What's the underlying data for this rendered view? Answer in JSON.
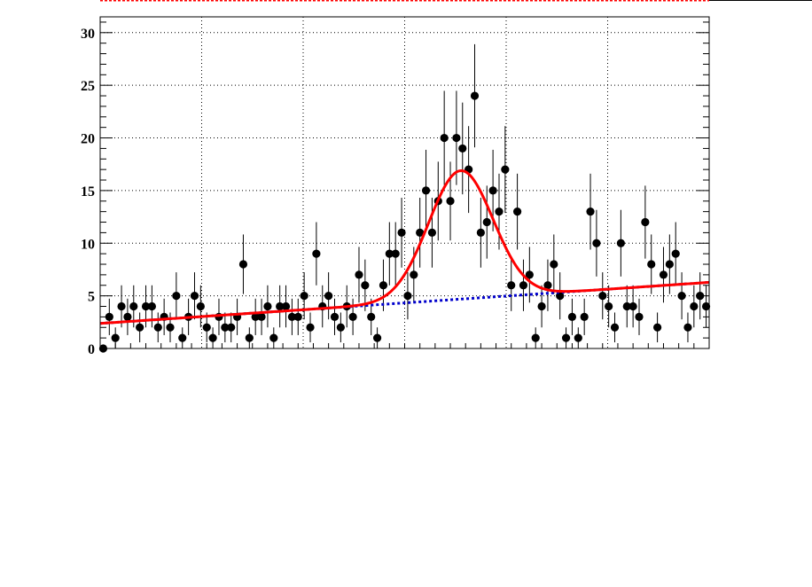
{
  "chart_data": {
    "type": "scatter",
    "title": "",
    "xlabel": "",
    "ylabel": "",
    "xlim": [
      0,
      100
    ],
    "ylim": [
      0,
      31.5
    ],
    "grid": true,
    "y_ticks": [
      0,
      5,
      10,
      15,
      20,
      25,
      30
    ],
    "colors": {
      "points": "#000000",
      "fit_total": "#ff0000",
      "fit_background": "#0000cc",
      "top_marker": "#ff0000"
    },
    "points": {
      "x": [
        0.5,
        1.5,
        2.5,
        3.5,
        4.5,
        5.5,
        6.5,
        7.5,
        8.5,
        9.5,
        10.5,
        11.5,
        12.5,
        13.5,
        14.5,
        15.5,
        16.5,
        17.5,
        18.5,
        19.5,
        20.5,
        21.5,
        22.5,
        23.5,
        24.5,
        25.5,
        26.5,
        27.5,
        28.5,
        29.5,
        30.5,
        31.5,
        32.5,
        33.5,
        34.5,
        35.5,
        36.5,
        37.5,
        38.5,
        39.5,
        40.5,
        41.5,
        42.5,
        43.5,
        44.5,
        45.5,
        46.5,
        47.5,
        48.5,
        49.5,
        50.5,
        51.5,
        52.5,
        53.5,
        54.5,
        55.5,
        56.5,
        57.5,
        58.5,
        59.5,
        60.5,
        61.5,
        62.5,
        63.5,
        64.5,
        65.5,
        66.5,
        67.5,
        68.5,
        69.5,
        70.5,
        71.5,
        72.5,
        73.5,
        74.5,
        75.5,
        76.5,
        77.5,
        78.5,
        79.5,
        80.5,
        81.5,
        82.5,
        83.5,
        84.5,
        85.5,
        86.5,
        87.5,
        88.5,
        89.5,
        90.5,
        91.5,
        92.5,
        93.5,
        94.5,
        95.5,
        96.5,
        97.5,
        98.5,
        99.5
      ],
      "y": [
        0,
        3,
        1,
        4,
        3,
        4,
        2,
        4,
        4,
        2,
        3,
        2,
        5,
        1,
        3,
        5,
        4,
        2,
        1,
        3,
        2,
        2,
        3,
        8,
        1,
        3,
        3,
        4,
        1,
        4,
        4,
        3,
        3,
        5,
        2,
        9,
        4,
        5,
        3,
        2,
        4,
        3,
        7,
        6,
        3,
        1,
        6,
        9,
        9,
        11,
        5,
        7,
        11,
        15,
        11,
        14,
        20,
        14,
        20,
        19,
        17,
        24,
        11,
        12,
        15,
        13,
        17,
        6,
        13,
        6,
        7,
        1,
        4,
        6,
        8,
        5,
        1,
        3,
        1,
        3,
        13,
        10,
        5,
        4,
        2,
        10,
        4,
        4,
        3,
        12,
        8,
        2,
        7,
        8,
        9,
        5,
        2,
        4,
        5,
        4
      ]
    },
    "fit_total": {
      "background": [
        2.38,
        0.039
      ],
      "peak": {
        "amplitude": 12.2,
        "mean": 59.2,
        "sigma": 5.3
      }
    },
    "fit_background": [
      2.38,
      0.039
    ]
  }
}
